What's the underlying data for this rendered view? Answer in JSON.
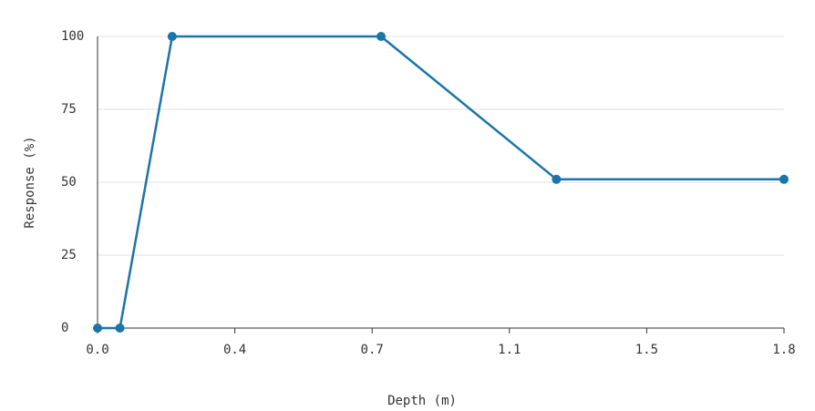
{
  "chart_data": {
    "type": "line",
    "x_label": "Depth (m)",
    "y_label": "Response (%)",
    "x": [
      0,
      0.06,
      0.2,
      0.76,
      1.23,
      1.84
    ],
    "series": [
      {
        "name": "Response",
        "color": "#1a75a8",
        "values": [
          0,
          0,
          100,
          100,
          51,
          51
        ]
      }
    ],
    "xlim": [
      0,
      1.84
    ],
    "xticks": [
      {
        "value": 0,
        "label": "0.0"
      },
      {
        "value": 0.368,
        "label": "0.4"
      },
      {
        "value": 0.736,
        "label": "0.7"
      },
      {
        "value": 1.104,
        "label": "1.1"
      },
      {
        "value": 1.472,
        "label": "1.5"
      },
      {
        "value": 1.84,
        "label": "1.8"
      }
    ],
    "ylim": [
      0,
      100
    ],
    "yticks": [
      0,
      25,
      50,
      75,
      100
    ],
    "grid": true
  }
}
